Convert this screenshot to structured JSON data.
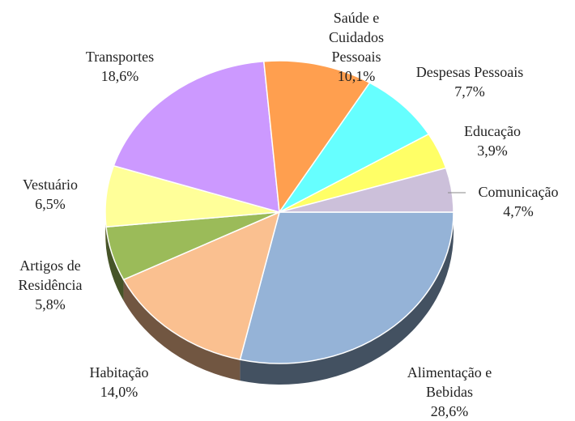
{
  "chart_data": {
    "type": "pie",
    "categories": [
      "Alimentação e Bebidas",
      "Habitação",
      "Artigos de Residência",
      "Vestuário",
      "Transportes",
      "Saúde e Cuidados Pessoais",
      "Despesas Pessoais",
      "Educação",
      "Comunicação"
    ],
    "values": [
      28.6,
      14.0,
      5.8,
      6.5,
      18.6,
      10.1,
      7.7,
      3.9,
      4.7
    ],
    "value_labels": [
      "28,6%",
      "14,0%",
      "5,8%",
      "6,5%",
      "18,6%",
      "10,1%",
      "7,7%",
      "3,9%",
      "4,7%"
    ],
    "colors": [
      "#95b3d7",
      "#fac090",
      "#9bbb59",
      "#ffff99",
      "#cc99ff",
      "#ff9f4f",
      "#66ffff",
      "#ffff66",
      "#ccc0da"
    ]
  }
}
